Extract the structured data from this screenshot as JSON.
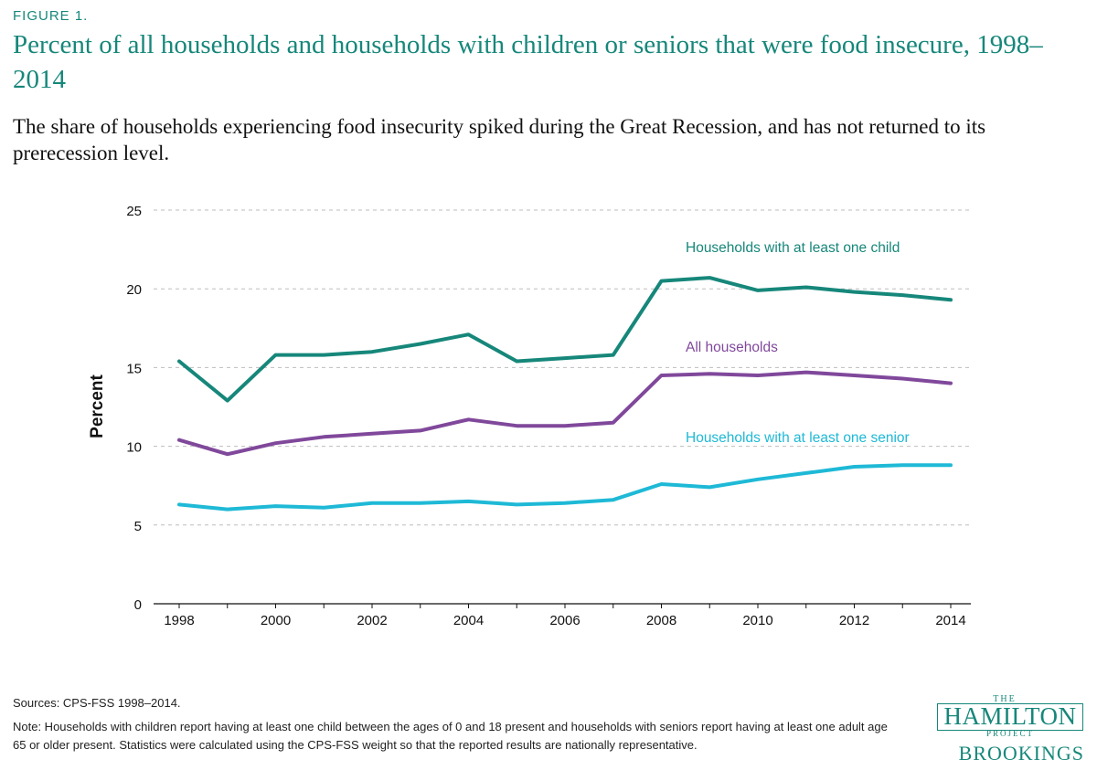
{
  "figure_label": "FIGURE 1.",
  "title": "Percent of all households and households with children or seniors that were food insecure, 1998–2014",
  "subtitle": "The share of households experiencing food insecurity spiked during the Great Recession, and has not returned to its prerecession level.",
  "sources": "Sources: CPS-FSS 1998–2014.",
  "note": "Note: Households with children report having at least one child between the ages of 0 and 18 present and households with seniors report having at least one adult age 65 or older present. Statistics were calculated using the CPS-FSS weight so that the reported results are nationally representative.",
  "logo": {
    "the": "THE",
    "hamilton": "HAMILTON",
    "project": "PROJECT",
    "brookings": "BROOKINGS"
  },
  "chart_data": {
    "type": "line",
    "ylabel": "Percent",
    "xlabel": "",
    "ylim": [
      0,
      25
    ],
    "xlim": [
      1998,
      2014
    ],
    "yticks": [
      0,
      5,
      10,
      15,
      20,
      25
    ],
    "xticks": [
      1998,
      2000,
      2002,
      2004,
      2006,
      2008,
      2010,
      2012,
      2014
    ],
    "grid": "horizontal dashed",
    "x": [
      1998,
      1999,
      2000,
      2001,
      2002,
      2003,
      2004,
      2005,
      2006,
      2007,
      2008,
      2009,
      2010,
      2011,
      2012,
      2013,
      2014
    ],
    "series": [
      {
        "name": "Households with at least one child",
        "color": "#16877a",
        "values": [
          15.4,
          12.9,
          15.8,
          15.8,
          16.0,
          16.5,
          17.1,
          15.4,
          15.6,
          15.8,
          20.5,
          20.7,
          19.9,
          20.1,
          19.8,
          19.6,
          19.3
        ]
      },
      {
        "name": "All households",
        "color": "#80489b",
        "values": [
          10.4,
          9.5,
          10.2,
          10.6,
          10.8,
          11.0,
          11.7,
          11.3,
          11.3,
          11.5,
          14.5,
          14.6,
          14.5,
          14.7,
          14.5,
          14.3,
          14.0
        ]
      },
      {
        "name": "Households with at least one senior",
        "color": "#1eb9d6",
        "values": [
          6.3,
          6.0,
          6.2,
          6.1,
          6.4,
          6.4,
          6.5,
          6.3,
          6.4,
          6.6,
          7.6,
          7.4,
          7.9,
          8.3,
          8.7,
          8.8,
          8.8
        ]
      }
    ]
  }
}
